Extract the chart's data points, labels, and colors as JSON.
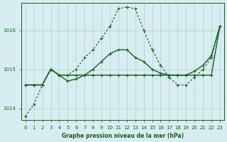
{
  "title": "Graphe pression niveau de la mer (hPa)",
  "bg_color": "#d6eef0",
  "grid_color": "#b0cdd0",
  "line_color": "#1a5c1a",
  "x_labels": [
    "0",
    "1",
    "2",
    "3",
    "4",
    "5",
    "6",
    "7",
    "8",
    "9",
    "10",
    "11",
    "12",
    "13",
    "14",
    "15",
    "16",
    "17",
    "18",
    "19",
    "20",
    "21",
    "22",
    "23"
  ],
  "ylim": [
    1013.7,
    1016.7
  ],
  "yticks": [
    1014,
    1015,
    1016
  ],
  "series1": [
    1013.8,
    1014.1,
    1014.6,
    1015.0,
    1014.85,
    1014.85,
    1015.0,
    1015.3,
    1015.5,
    1015.8,
    1016.1,
    1016.55,
    1016.6,
    1016.55,
    1016.0,
    1015.5,
    1015.1,
    1014.8,
    1014.6,
    1014.6,
    1014.8,
    1015.0,
    1015.3,
    1016.1
  ],
  "series2": [
    1014.6,
    1014.6,
    1014.6,
    1015.0,
    1014.85,
    1014.85,
    1014.85,
    1014.85,
    1014.85,
    1014.85,
    1014.85,
    1014.85,
    1014.85,
    1014.85,
    1014.85,
    1014.85,
    1014.85,
    1014.85,
    1014.85,
    1014.85,
    1014.85,
    1014.85,
    1014.85,
    1016.1
  ],
  "series3": [
    1014.6,
    1014.6,
    1014.6,
    1015.0,
    1014.85,
    1014.7,
    1014.75,
    1014.85,
    1015.0,
    1015.2,
    1015.4,
    1015.5,
    1015.5,
    1015.3,
    1015.2,
    1015.0,
    1014.9,
    1014.85,
    1014.85,
    1014.85,
    1014.95,
    1015.1,
    1015.35,
    1016.1
  ]
}
